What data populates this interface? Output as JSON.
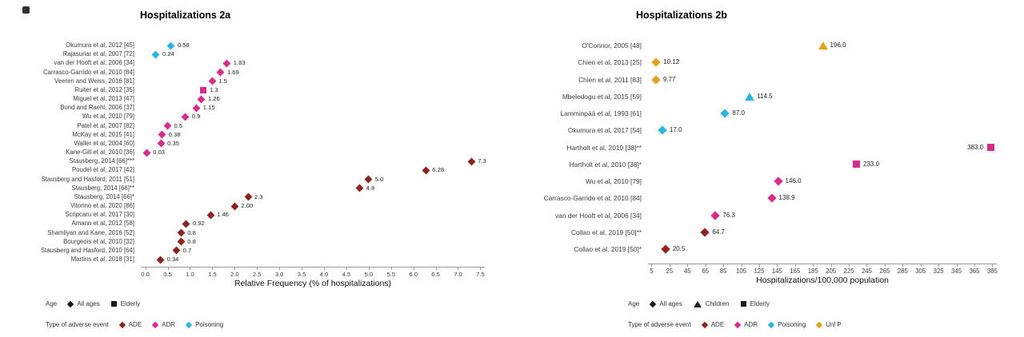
{
  "colors": {
    "ADE": "#8e2420",
    "ADR": "#d62c8b",
    "Poisoning": "#2ab5e5",
    "Unl P": "#e3a11d",
    "legend_black": "#1a1a1a"
  },
  "legend_labels": {
    "age": "Age",
    "type": "Type of adverse event"
  },
  "chart_data": [
    {
      "type": "scatter",
      "title": "Hospitalizations 2a",
      "xlabel": "Relative Frequency (% of hospitalizations)",
      "xmin": -0.1,
      "xmax": 7.6,
      "xticks": [
        0.0,
        0.5,
        1.0,
        1.5,
        2.0,
        2.5,
        3.0,
        3.5,
        4.0,
        4.5,
        5.0,
        5.5,
        6.0,
        6.5,
        7.0,
        7.5
      ],
      "xtick_labels": [
        "0.0",
        "0.5",
        "1.0",
        "1.5",
        "2.0",
        "2.5",
        "3.0",
        "3.5",
        "4.0",
        "4.5",
        "5.0",
        "5.5",
        "6.0",
        "6.5",
        "7.0",
        "7.5"
      ],
      "legend": {
        "age": [
          {
            "shape": "diamond",
            "label": "All ages"
          },
          {
            "shape": "square",
            "label": "Elderly"
          }
        ],
        "type": [
          {
            "event": "ADE",
            "label": "ADE"
          },
          {
            "event": "ADR",
            "label": "ADR"
          },
          {
            "event": "Poisoning",
            "label": "Poisoning"
          }
        ]
      },
      "points": [
        {
          "study": "Okumura et al, 2012 [45]",
          "value": 0.58,
          "label": "0.58",
          "event": "Poisoning",
          "shape": "diamond"
        },
        {
          "study": "Rajasuriar et al, 2007 [72]",
          "value": 0.24,
          "label": "0.24",
          "event": "Poisoning",
          "shape": "diamond"
        },
        {
          "study": "van der Hooft et al, 2006 [34]",
          "value": 1.83,
          "label": "1.83",
          "event": "ADR",
          "shape": "diamond"
        },
        {
          "study": "Carrasco-Garrido et al, 2010 [84]",
          "value": 1.69,
          "label": "1.69",
          "event": "ADR",
          "shape": "diamond"
        },
        {
          "study": "Veeren and Weiss, 2016 [81]",
          "value": 1.5,
          "label": "1.5",
          "event": "ADR",
          "shape": "diamond"
        },
        {
          "study": "Ruiter et al, 2012 [35]",
          "value": 1.3,
          "label": "1.3",
          "event": "ADR",
          "shape": "square"
        },
        {
          "study": "Miguel et al, 2013 [47]",
          "value": 1.26,
          "label": "1.26",
          "event": "ADR",
          "shape": "diamond"
        },
        {
          "study": "Bond and Raehl, 2006 [37]",
          "value": 1.15,
          "label": "1.15",
          "event": "ADR",
          "shape": "diamond"
        },
        {
          "study": "Wu et al, 2010 [79]",
          "value": 0.9,
          "label": "0.9",
          "event": "ADR",
          "shape": "diamond"
        },
        {
          "study": "Patel et al, 2007 [82]",
          "value": 0.5,
          "label": "0.5",
          "event": "ADR",
          "shape": "diamond"
        },
        {
          "study": "McKay et al, 2015 [41]",
          "value": 0.38,
          "label": "0.38",
          "event": "ADR",
          "shape": "diamond"
        },
        {
          "study": "Waller et al, 2004 [60]",
          "value": 0.35,
          "label": "0.35",
          "event": "ADR",
          "shape": "diamond"
        },
        {
          "study": "Kane-Gill et al, 2010 [36]",
          "value": 0.03,
          "label": "0.03",
          "event": "ADR",
          "shape": "diamond"
        },
        {
          "study": "Stausberg, 2014 [66]***",
          "value": 7.3,
          "label": "7.3",
          "event": "ADE",
          "shape": "diamond"
        },
        {
          "study": "Poudel et al, 2017 [42]",
          "value": 6.28,
          "label": "6.28",
          "event": "ADE",
          "shape": "diamond"
        },
        {
          "study": "Stausberg and Hasford, 2011 [51]",
          "value": 5.0,
          "label": "5.0",
          "event": "ADE",
          "shape": "diamond"
        },
        {
          "study": "Stausberg, 2014 [66]**",
          "value": 4.8,
          "label": "4.8",
          "event": "ADE",
          "shape": "diamond"
        },
        {
          "study": "Stausberg, 2014 [66]*",
          "value": 2.3,
          "label": "2.3",
          "event": "ADE",
          "shape": "diamond"
        },
        {
          "study": "Vitorino et al, 2020 [86]",
          "value": 2.0,
          "label": "2.00",
          "event": "ADE",
          "shape": "diamond"
        },
        {
          "study": "Scripcaru et al, 2017 [30]",
          "value": 1.46,
          "label": "1.46",
          "event": "ADE",
          "shape": "diamond"
        },
        {
          "study": "Amann et al, 2012 [58]",
          "value": 0.92,
          "label": "0.92",
          "event": "ADE",
          "shape": "diamond"
        },
        {
          "study": "Shamliyan and Kane, 2016 [52]",
          "value": 0.8,
          "label": "0.8",
          "event": "ADE",
          "shape": "diamond"
        },
        {
          "study": "Bourgeois et al, 2010 [32]",
          "value": 0.8,
          "label": "0.8",
          "event": "ADE",
          "shape": "diamond"
        },
        {
          "study": "Stausberg and Hasford, 2010 [64]",
          "value": 0.7,
          "label": "0.7",
          "event": "ADE",
          "shape": "diamond"
        },
        {
          "study": "Martins et al, 2018 [31]",
          "value": 0.34,
          "label": "0.34",
          "event": "ADE",
          "shape": "diamond"
        }
      ]
    },
    {
      "type": "scatter",
      "title": "Hospitalizations 2b",
      "xlabel": "Hospitalizations/100,000 population",
      "xmin": 1,
      "xmax": 390,
      "xticks": [
        5,
        25,
        45,
        65,
        85,
        105,
        125,
        145,
        165,
        185,
        205,
        225,
        245,
        265,
        285,
        305,
        325,
        345,
        365,
        385
      ],
      "xtick_labels": [
        "5",
        "25",
        "45",
        "65",
        "85",
        "105",
        "125",
        "145",
        "165",
        "185",
        "205",
        "225",
        "245",
        "265",
        "285",
        "305",
        "325",
        "345",
        "365",
        "385"
      ],
      "legend": {
        "age": [
          {
            "shape": "diamond",
            "label": "All ages"
          },
          {
            "shape": "triangle",
            "label": "Children"
          },
          {
            "shape": "square",
            "label": "Elderly"
          }
        ],
        "type": [
          {
            "event": "ADE",
            "label": "ADE"
          },
          {
            "event": "ADR",
            "label": "ADR"
          },
          {
            "event": "Poisoning",
            "label": "Poisoning"
          },
          {
            "event": "Unl P",
            "label": "Unl P"
          }
        ]
      },
      "points": [
        {
          "study": "O'Connor, 2005 [48]",
          "value": 196.0,
          "label": "196.0",
          "event": "Unl P",
          "shape": "triangle"
        },
        {
          "study": "Chien et al, 2013 [25]",
          "value": 10.12,
          "label": "10.12",
          "event": "Unl P",
          "shape": "diamond"
        },
        {
          "study": "Chien et al, 2011 [83]",
          "value": 9.77,
          "label": "9.77",
          "event": "Unl P",
          "shape": "diamond"
        },
        {
          "study": "Mbeledogu et al, 2015 [59]",
          "value": 114.5,
          "label": "114.5",
          "event": "Poisoning",
          "shape": "triangle"
        },
        {
          "study": "Lamminpää et al, 1993 [61]",
          "value": 87.0,
          "label": "87.0",
          "event": "Poisoning",
          "shape": "diamond"
        },
        {
          "study": "Okumura et al, 2017 [54]",
          "value": 17.0,
          "label": "17.0",
          "event": "Poisoning",
          "shape": "diamond"
        },
        {
          "study": "Hartholt et al, 2010 [38]**",
          "value": 383.0,
          "label": "383.0",
          "event": "ADR",
          "shape": "square",
          "label_side": "left"
        },
        {
          "study": "Hartholt et al, 2010 [38]*",
          "value": 233.0,
          "label": "233.0",
          "event": "ADR",
          "shape": "square"
        },
        {
          "study": "Wu et al, 2010 [79]",
          "value": 146.0,
          "label": "146.0",
          "event": "ADR",
          "shape": "diamond"
        },
        {
          "study": "Carrasco-Garrido et al, 2010 [84]",
          "value": 138.9,
          "label": "138.9",
          "event": "ADR",
          "shape": "diamond"
        },
        {
          "study": "van der Hooft et al, 2006 [34]",
          "value": 76.3,
          "label": "76.3",
          "event": "ADR",
          "shape": "diamond"
        },
        {
          "study": "Collao et al, 2019 [50]**",
          "value": 64.7,
          "label": "64.7",
          "event": "ADE",
          "shape": "diamond"
        },
        {
          "study": "Collao et al, 2019 [50]*",
          "value": 20.5,
          "label": "20.5",
          "event": "ADE",
          "shape": "diamond"
        }
      ]
    }
  ]
}
